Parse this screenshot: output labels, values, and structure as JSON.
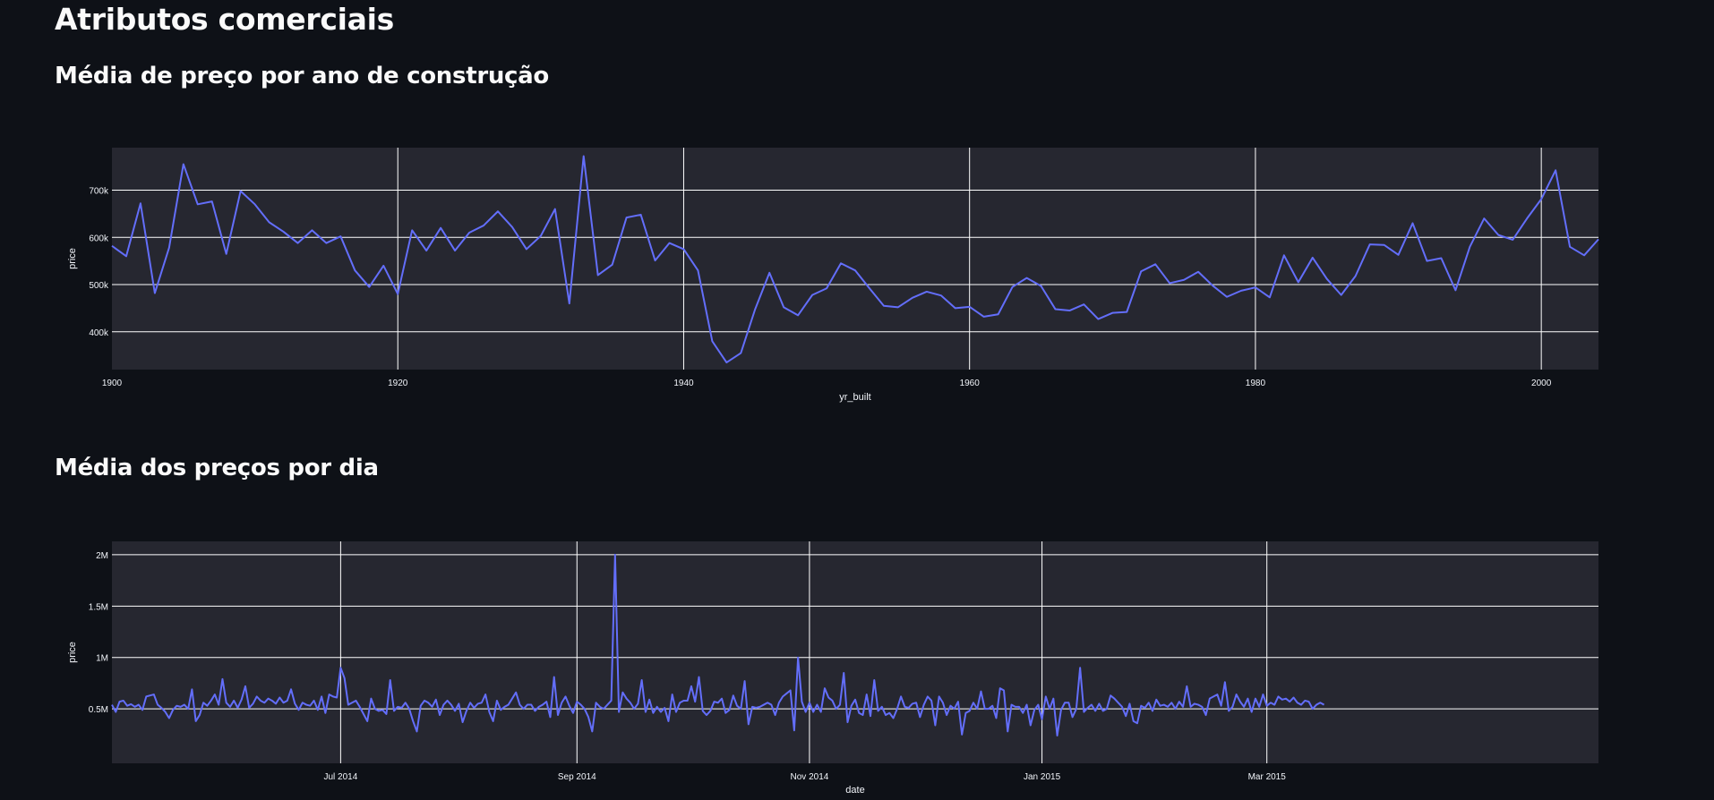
{
  "page": {
    "title": "Atributos comerciais",
    "section1_title": "Média de preço por ano de construção",
    "section2_title": "Média dos preços por dia"
  },
  "colors": {
    "background": "#0e1117",
    "plot_background": "#262730",
    "grid": "#ffffff",
    "line": "#636efa"
  },
  "chart_data": [
    {
      "type": "line",
      "xlabel": "yr_built",
      "ylabel": "price",
      "xlim": [
        1900,
        2004
      ],
      "ylim": [
        320000,
        790000
      ],
      "x_ticks": [
        1900,
        1920,
        1940,
        1960,
        1980,
        2000
      ],
      "x_tick_labels": [
        "1900",
        "1920",
        "1940",
        "1960",
        "1980",
        "2000"
      ],
      "y_ticks": [
        400000,
        500000,
        600000,
        700000
      ],
      "y_tick_labels": [
        "400k",
        "500k",
        "600k",
        "700k"
      ],
      "x": [
        1900,
        1901,
        1902,
        1903,
        1904,
        1905,
        1906,
        1907,
        1908,
        1909,
        1910,
        1911,
        1912,
        1913,
        1914,
        1915,
        1916,
        1917,
        1918,
        1919,
        1920,
        1921,
        1922,
        1923,
        1924,
        1925,
        1926,
        1927,
        1928,
        1929,
        1930,
        1931,
        1932,
        1933,
        1934,
        1935,
        1936,
        1937,
        1938,
        1939,
        1940,
        1941,
        1942,
        1943,
        1944,
        1945,
        1946,
        1947,
        1948,
        1949,
        1950,
        1951,
        1952,
        1953,
        1954,
        1955,
        1956,
        1957,
        1958,
        1959,
        1960,
        1961,
        1962,
        1963,
        1964,
        1965,
        1966,
        1967,
        1968,
        1969,
        1970,
        1971,
        1972,
        1973,
        1974,
        1975,
        1976,
        1977,
        1978,
        1979,
        1980,
        1981,
        1982,
        1983,
        1984,
        1985,
        1986,
        1987,
        1988,
        1989,
        1990,
        1991,
        1992,
        1993,
        1994,
        1995,
        1996,
        1997,
        1998,
        1999,
        2000,
        2001,
        2002,
        2003,
        2004
      ],
      "y": [
        582000,
        560000,
        672000,
        482000,
        578000,
        755000,
        670000,
        676000,
        565000,
        698000,
        670000,
        632000,
        612000,
        588000,
        615000,
        588000,
        602000,
        530000,
        495000,
        540000,
        480000,
        615000,
        572000,
        620000,
        572000,
        610000,
        625000,
        655000,
        622000,
        575000,
        603000,
        660000,
        460000,
        772000,
        520000,
        542000,
        642000,
        648000,
        551000,
        588000,
        575000,
        530000,
        380000,
        335000,
        355000,
        448000,
        525000,
        452000,
        435000,
        478000,
        492000,
        545000,
        530000,
        492000,
        455000,
        452000,
        472000,
        485000,
        477000,
        450000,
        453000,
        432000,
        437000,
        495000,
        514000,
        497000,
        448000,
        445000,
        458000,
        427000,
        440000,
        442000,
        528000,
        543000,
        503000,
        510000,
        527000,
        498000,
        474000,
        487000,
        494000,
        473000,
        562000,
        505000,
        557000,
        512000,
        478000,
        518000,
        585000,
        584000,
        563000,
        630000,
        550000,
        556000,
        488000,
        580000,
        640000,
        605000,
        595000,
        640000,
        681000,
        742000,
        580000,
        562000,
        596000
      ]
    },
    {
      "type": "line",
      "xlabel": "date",
      "ylabel": "price",
      "xlim": [
        "2014-05-02",
        "2015-05-27"
      ],
      "ylim": [
        -30000,
        2130000
      ],
      "x_tick_labels": [
        "Jul 2014",
        "Sep 2014",
        "Nov 2014",
        "Jan 2015",
        "Mar 2015"
      ],
      "x_tick_dates": [
        "2014-07-01",
        "2014-09-01",
        "2014-11-01",
        "2015-01-01",
        "2015-03-01"
      ],
      "y_ticks": [
        500000,
        1000000,
        1500000,
        2000000
      ],
      "y_tick_labels": [
        "0.5M",
        "1M",
        "1.5M",
        "2M"
      ],
      "x_start": "2014-05-02",
      "x_step_days": 1,
      "y": [
        540000,
        470000,
        570000,
        580000,
        530000,
        545000,
        520000,
        540000,
        490000,
        620000,
        630000,
        640000,
        540000,
        510000,
        470000,
        410000,
        490000,
        530000,
        520000,
        540000,
        500000,
        690000,
        380000,
        440000,
        560000,
        530000,
        580000,
        640000,
        540000,
        790000,
        560000,
        520000,
        580000,
        510000,
        590000,
        720000,
        510000,
        550000,
        620000,
        580000,
        560000,
        600000,
        580000,
        550000,
        610000,
        560000,
        580000,
        690000,
        550000,
        490000,
        560000,
        540000,
        530000,
        580000,
        490000,
        620000,
        460000,
        640000,
        620000,
        610000,
        900000,
        800000,
        540000,
        560000,
        580000,
        520000,
        450000,
        380000,
        600000,
        500000,
        480000,
        490000,
        450000,
        780000,
        480000,
        520000,
        510000,
        560000,
        500000,
        380000,
        280000,
        530000,
        580000,
        560000,
        520000,
        590000,
        440000,
        540000,
        580000,
        540000,
        480000,
        550000,
        370000,
        480000,
        560000,
        510000,
        550000,
        560000,
        640000,
        470000,
        380000,
        580000,
        490000,
        520000,
        540000,
        600000,
        660000,
        540000,
        500000,
        540000,
        540000,
        480000,
        520000,
        540000,
        570000,
        420000,
        810000,
        440000,
        560000,
        620000,
        530000,
        460000,
        570000,
        540000,
        500000,
        420000,
        280000,
        560000,
        520000,
        500000,
        540000,
        580000,
        2000000,
        470000,
        660000,
        600000,
        560000,
        500000,
        550000,
        780000,
        470000,
        590000,
        460000,
        520000,
        470000,
        510000,
        380000,
        640000,
        470000,
        560000,
        580000,
        580000,
        720000,
        570000,
        810000,
        480000,
        440000,
        480000,
        570000,
        560000,
        600000,
        460000,
        490000,
        630000,
        530000,
        500000,
        770000,
        350000,
        520000,
        510000,
        520000,
        540000,
        560000,
        540000,
        440000,
        560000,
        620000,
        650000,
        680000,
        290000,
        1000000,
        570000,
        470000,
        560000,
        470000,
        540000,
        470000,
        700000,
        610000,
        580000,
        500000,
        540000,
        850000,
        370000,
        530000,
        590000,
        460000,
        440000,
        640000,
        430000,
        780000,
        480000,
        520000,
        440000,
        460000,
        410000,
        500000,
        620000,
        520000,
        510000,
        550000,
        560000,
        420000,
        540000,
        620000,
        580000,
        340000,
        620000,
        560000,
        440000,
        530000,
        500000,
        570000,
        250000,
        460000,
        480000,
        560000,
        500000,
        670000,
        500000,
        500000,
        530000,
        410000,
        700000,
        680000,
        280000,
        540000,
        520000,
        520000,
        460000,
        540000,
        340000,
        490000,
        540000,
        400000,
        620000,
        500000,
        600000,
        240000,
        490000,
        560000,
        560000,
        420000,
        500000,
        900000,
        470000,
        510000,
        540000,
        480000,
        550000,
        480000,
        500000,
        630000,
        600000,
        560000,
        520000,
        430000,
        550000,
        380000,
        360000,
        530000,
        510000,
        560000,
        480000,
        590000,
        530000,
        540000,
        520000,
        560000,
        500000,
        570000,
        520000,
        720000,
        520000,
        550000,
        540000,
        520000,
        440000,
        600000,
        620000,
        640000,
        530000,
        760000,
        480000,
        520000,
        640000,
        570000,
        520000,
        600000,
        470000,
        600000,
        520000,
        640000,
        530000,
        560000,
        540000,
        620000,
        590000,
        600000,
        570000,
        610000,
        560000,
        540000,
        580000,
        570000,
        500000,
        540000,
        560000,
        540000
      ]
    }
  ]
}
